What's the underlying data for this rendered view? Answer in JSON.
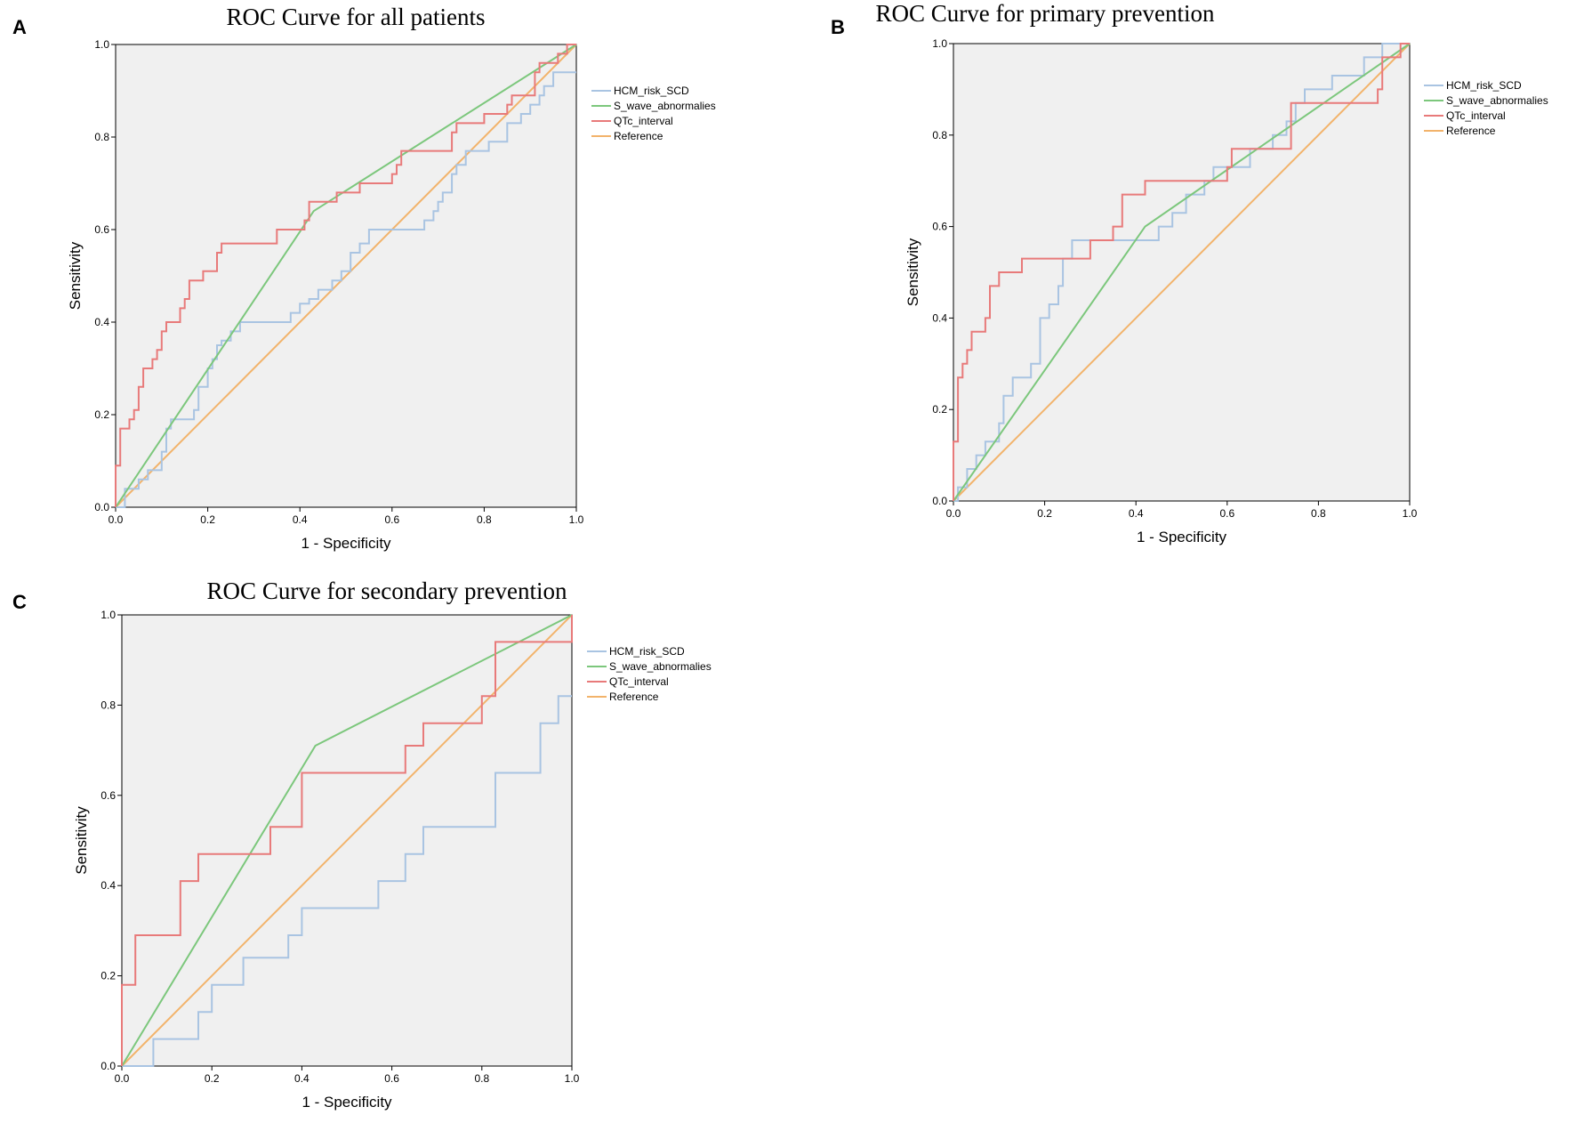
{
  "chart_data": [
    {
      "panel": "A",
      "type": "line",
      "title": "ROC Curve for all patients",
      "xlabel": "1 - Specificity",
      "ylabel": "Sensitivity",
      "xlim": [
        0,
        1
      ],
      "ylim": [
        0,
        1
      ],
      "xticks": [
        "0.0",
        "0.2",
        "0.4",
        "0.6",
        "0.8",
        "1.0"
      ],
      "yticks": [
        "0.0",
        "0.2",
        "0.4",
        "0.6",
        "0.8",
        "1.0"
      ],
      "legend_position": "right",
      "series": [
        {
          "name": "HCM_risk_SCD",
          "color": "#a9c4e2",
          "step": true,
          "points": [
            [
              0,
              0
            ],
            [
              0.02,
              0.04
            ],
            [
              0.05,
              0.06
            ],
            [
              0.07,
              0.08
            ],
            [
              0.1,
              0.12
            ],
            [
              0.11,
              0.17
            ],
            [
              0.12,
              0.19
            ],
            [
              0.15,
              0.19
            ],
            [
              0.17,
              0.21
            ],
            [
              0.18,
              0.26
            ],
            [
              0.2,
              0.3
            ],
            [
              0.21,
              0.32
            ],
            [
              0.22,
              0.35
            ],
            [
              0.23,
              0.36
            ],
            [
              0.25,
              0.38
            ],
            [
              0.27,
              0.4
            ],
            [
              0.37,
              0.4
            ],
            [
              0.38,
              0.42
            ],
            [
              0.4,
              0.44
            ],
            [
              0.42,
              0.45
            ],
            [
              0.44,
              0.47
            ],
            [
              0.47,
              0.49
            ],
            [
              0.49,
              0.51
            ],
            [
              0.51,
              0.55
            ],
            [
              0.53,
              0.57
            ],
            [
              0.55,
              0.6
            ],
            [
              0.66,
              0.6
            ],
            [
              0.67,
              0.62
            ],
            [
              0.69,
              0.64
            ],
            [
              0.7,
              0.66
            ],
            [
              0.71,
              0.68
            ],
            [
              0.73,
              0.72
            ],
            [
              0.74,
              0.74
            ],
            [
              0.76,
              0.77
            ],
            [
              0.8,
              0.77
            ],
            [
              0.81,
              0.79
            ],
            [
              0.85,
              0.83
            ],
            [
              0.87,
              0.83
            ],
            [
              0.88,
              0.85
            ],
            [
              0.9,
              0.87
            ],
            [
              0.92,
              0.89
            ],
            [
              0.93,
              0.91
            ],
            [
              0.95,
              0.94
            ],
            [
              1.0,
              0.94
            ]
          ]
        },
        {
          "name": "S_wave_abnormalies",
          "color": "#7cc77c",
          "step": false,
          "points": [
            [
              0,
              0
            ],
            [
              0.43,
              0.64
            ],
            [
              1,
              1
            ]
          ]
        },
        {
          "name": "QTc_interval",
          "color": "#e87a7a",
          "step": true,
          "points": [
            [
              0,
              0
            ],
            [
              0,
              0.09
            ],
            [
              0.01,
              0.17
            ],
            [
              0.03,
              0.19
            ],
            [
              0.04,
              0.21
            ],
            [
              0.05,
              0.26
            ],
            [
              0.06,
              0.3
            ],
            [
              0.08,
              0.32
            ],
            [
              0.09,
              0.34
            ],
            [
              0.1,
              0.38
            ],
            [
              0.11,
              0.4
            ],
            [
              0.14,
              0.43
            ],
            [
              0.15,
              0.45
            ],
            [
              0.16,
              0.49
            ],
            [
              0.19,
              0.51
            ],
            [
              0.22,
              0.55
            ],
            [
              0.23,
              0.57
            ],
            [
              0.35,
              0.6
            ],
            [
              0.41,
              0.62
            ],
            [
              0.42,
              0.66
            ],
            [
              0.46,
              0.66
            ],
            [
              0.48,
              0.68
            ],
            [
              0.53,
              0.7
            ],
            [
              0.6,
              0.72
            ],
            [
              0.61,
              0.74
            ],
            [
              0.62,
              0.77
            ],
            [
              0.73,
              0.81
            ],
            [
              0.74,
              0.83
            ],
            [
              0.8,
              0.85
            ],
            [
              0.85,
              0.87
            ],
            [
              0.86,
              0.89
            ],
            [
              0.91,
              0.94
            ],
            [
              0.92,
              0.96
            ],
            [
              0.96,
              0.98
            ],
            [
              0.98,
              1.0
            ],
            [
              1.0,
              1.0
            ]
          ]
        },
        {
          "name": "Reference",
          "color": "#f2b36b",
          "step": false,
          "points": [
            [
              0,
              0
            ],
            [
              1,
              1
            ]
          ]
        }
      ]
    },
    {
      "panel": "B",
      "type": "line",
      "title": "ROC Curve for primary prevention",
      "xlabel": "1 - Specificity",
      "ylabel": "Sensitivity",
      "xlim": [
        0,
        1
      ],
      "ylim": [
        0,
        1
      ],
      "xticks": [
        "0.0",
        "0.2",
        "0.4",
        "0.6",
        "0.8",
        "1.0"
      ],
      "yticks": [
        "0.0",
        "0.2",
        "0.4",
        "0.6",
        "0.8",
        "1.0"
      ],
      "legend_position": "right",
      "series": [
        {
          "name": "HCM_risk_SCD",
          "color": "#a9c4e2",
          "step": true,
          "points": [
            [
              0,
              0
            ],
            [
              0.01,
              0.03
            ],
            [
              0.03,
              0.07
            ],
            [
              0.05,
              0.1
            ],
            [
              0.07,
              0.13
            ],
            [
              0.1,
              0.17
            ],
            [
              0.11,
              0.23
            ],
            [
              0.13,
              0.27
            ],
            [
              0.17,
              0.3
            ],
            [
              0.19,
              0.4
            ],
            [
              0.21,
              0.43
            ],
            [
              0.23,
              0.47
            ],
            [
              0.24,
              0.53
            ],
            [
              0.26,
              0.57
            ],
            [
              0.4,
              0.57
            ],
            [
              0.45,
              0.6
            ],
            [
              0.48,
              0.63
            ],
            [
              0.51,
              0.67
            ],
            [
              0.55,
              0.7
            ],
            [
              0.57,
              0.73
            ],
            [
              0.65,
              0.77
            ],
            [
              0.7,
              0.8
            ],
            [
              0.73,
              0.83
            ],
            [
              0.75,
              0.87
            ],
            [
              0.77,
              0.9
            ],
            [
              0.83,
              0.93
            ],
            [
              0.9,
              0.97
            ],
            [
              0.94,
              1.0
            ],
            [
              1.0,
              1.0
            ]
          ]
        },
        {
          "name": "S_wave_abnormalies",
          "color": "#7cc77c",
          "step": false,
          "points": [
            [
              0,
              0
            ],
            [
              0.42,
              0.6
            ],
            [
              1,
              1
            ]
          ]
        },
        {
          "name": "QTc_interval",
          "color": "#e87a7a",
          "step": true,
          "points": [
            [
              0,
              0
            ],
            [
              0,
              0.13
            ],
            [
              0.01,
              0.27
            ],
            [
              0.02,
              0.3
            ],
            [
              0.03,
              0.33
            ],
            [
              0.04,
              0.37
            ],
            [
              0.07,
              0.4
            ],
            [
              0.08,
              0.47
            ],
            [
              0.1,
              0.5
            ],
            [
              0.15,
              0.53
            ],
            [
              0.3,
              0.57
            ],
            [
              0.35,
              0.6
            ],
            [
              0.37,
              0.67
            ],
            [
              0.42,
              0.7
            ],
            [
              0.58,
              0.7
            ],
            [
              0.6,
              0.73
            ],
            [
              0.61,
              0.77
            ],
            [
              0.68,
              0.77
            ],
            [
              0.74,
              0.87
            ],
            [
              0.93,
              0.9
            ],
            [
              0.94,
              0.97
            ],
            [
              0.98,
              1.0
            ],
            [
              1.0,
              1.0
            ]
          ]
        },
        {
          "name": "Reference",
          "color": "#f2b36b",
          "step": false,
          "points": [
            [
              0,
              0
            ],
            [
              1,
              1
            ]
          ]
        }
      ]
    },
    {
      "panel": "C",
      "type": "line",
      "title": "ROC Curve for secondary prevention",
      "xlabel": "1 - Specificity",
      "ylabel": "Sensitivity",
      "xlim": [
        0,
        1
      ],
      "ylim": [
        0,
        1
      ],
      "xticks": [
        "0.0",
        "0.2",
        "0.4",
        "0.6",
        "0.8",
        "1.0"
      ],
      "yticks": [
        "0.0",
        "0.2",
        "0.4",
        "0.6",
        "0.8",
        "1.0"
      ],
      "legend_position": "right",
      "series": [
        {
          "name": "HCM_risk_SCD",
          "color": "#a9c4e2",
          "step": true,
          "points": [
            [
              0,
              0
            ],
            [
              0.07,
              0.06
            ],
            [
              0.17,
              0.12
            ],
            [
              0.2,
              0.18
            ],
            [
              0.27,
              0.24
            ],
            [
              0.37,
              0.29
            ],
            [
              0.4,
              0.35
            ],
            [
              0.57,
              0.35
            ],
            [
              0.57,
              0.41
            ],
            [
              0.63,
              0.47
            ],
            [
              0.67,
              0.53
            ],
            [
              0.83,
              0.53
            ],
            [
              0.83,
              0.65
            ],
            [
              0.93,
              0.65
            ],
            [
              0.93,
              0.76
            ],
            [
              0.97,
              0.82
            ],
            [
              1.0,
              0.82
            ]
          ]
        },
        {
          "name": "S_wave_abnormalies",
          "color": "#7cc77c",
          "step": false,
          "points": [
            [
              0,
              0
            ],
            [
              0.43,
              0.71
            ],
            [
              1,
              1
            ]
          ]
        },
        {
          "name": "QTc_interval",
          "color": "#e87a7a",
          "step": true,
          "points": [
            [
              0,
              0
            ],
            [
              0,
              0.18
            ],
            [
              0.03,
              0.29
            ],
            [
              0.13,
              0.41
            ],
            [
              0.17,
              0.47
            ],
            [
              0.33,
              0.53
            ],
            [
              0.4,
              0.65
            ],
            [
              0.63,
              0.71
            ],
            [
              0.67,
              0.76
            ],
            [
              0.8,
              0.82
            ],
            [
              0.83,
              0.94
            ],
            [
              1.0,
              0.94
            ],
            [
              1.0,
              1.0
            ]
          ]
        },
        {
          "name": "Reference",
          "color": "#f2b36b",
          "step": false,
          "points": [
            [
              0,
              0
            ],
            [
              1,
              1
            ]
          ]
        }
      ]
    }
  ]
}
